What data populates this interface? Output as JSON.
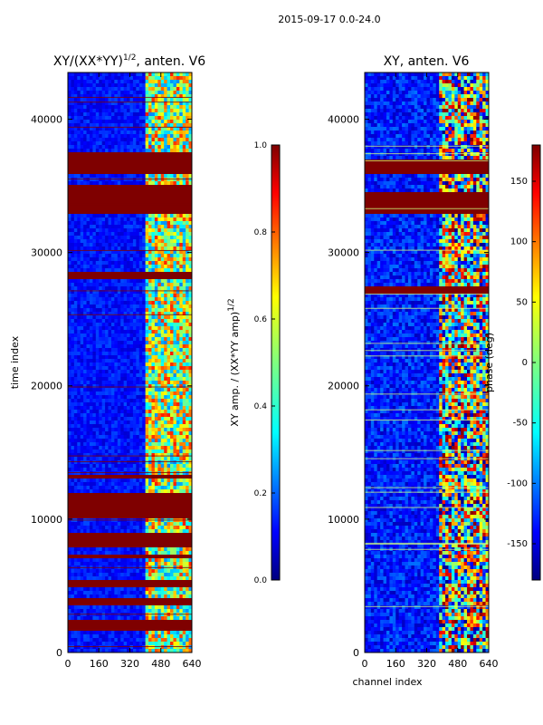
{
  "figure": {
    "suptitle": "2015-09-17 0.0-24.0"
  },
  "chart_data": [
    {
      "type": "heatmap",
      "title": "XY/(XX*YY)",
      "title_exponent": "1/2",
      "title_suffix": ", anten. V6",
      "xlabel": "",
      "ylabel": "time index",
      "xlim": [
        0,
        640
      ],
      "ylim": [
        0,
        43500
      ],
      "xticks": [
        0,
        160,
        320,
        480,
        640
      ],
      "yticks": [
        0,
        10000,
        20000,
        30000,
        40000
      ],
      "colorbar": {
        "label": "XY amp. / (XX*YY amp)",
        "label_exponent": "1/2",
        "range": [
          0.0,
          1.0
        ],
        "ticks": [
          "0.0",
          "0.2",
          "0.4",
          "0.6",
          "0.8",
          "1.0"
        ],
        "colormap": "jet"
      },
      "saturated_bands": [
        [
          1500,
          2500
        ],
        [
          3500,
          4200
        ],
        [
          4800,
          5500
        ],
        [
          7000,
          7400
        ],
        [
          8000,
          9000
        ],
        [
          10000,
          12000
        ],
        [
          13000,
          13300
        ],
        [
          28000,
          28500
        ],
        [
          33000,
          35000
        ],
        [
          36000,
          37500
        ]
      ],
      "active_channel_range": [
        400,
        640
      ]
    },
    {
      "type": "heatmap",
      "title": "XY, anten. V6",
      "xlabel": "channel index",
      "ylabel": "",
      "xlim": [
        0,
        640
      ],
      "ylim": [
        0,
        43500
      ],
      "xticks": [
        0,
        160,
        320,
        480,
        640
      ],
      "yticks": [
        0,
        10000,
        20000,
        30000,
        40000
      ],
      "colorbar": {
        "label": "phase (deg)",
        "range": [
          -180,
          180
        ],
        "ticks": [
          "-150",
          "-100",
          "-50",
          "0",
          "50",
          "100",
          "150"
        ],
        "colormap": "jet"
      },
      "saturated_bands": [
        [
          36000,
          37000
        ],
        [
          33000,
          34500
        ],
        [
          27000,
          27500
        ]
      ],
      "active_channel_range": [
        380,
        640
      ]
    }
  ]
}
